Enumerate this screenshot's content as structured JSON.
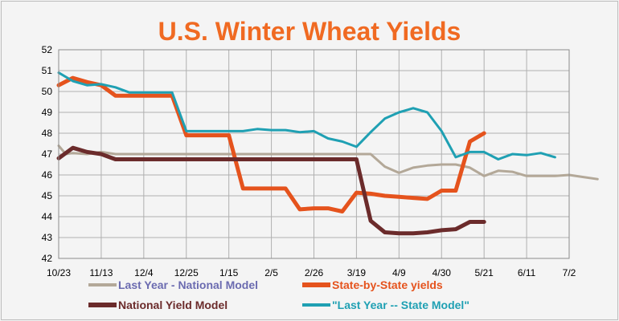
{
  "chart_data": {
    "type": "line",
    "title": "U.S. Winter Wheat Yields",
    "xlabel": "",
    "ylabel": "",
    "ylim": [
      42,
      52
    ],
    "yticks": [
      42,
      43,
      44,
      45,
      46,
      47,
      48,
      49,
      50,
      51,
      52
    ],
    "xticks": [
      "10/23",
      "11/13",
      "12/4",
      "12/25",
      "1/15",
      "2/5",
      "2/26",
      "3/19",
      "4/9",
      "4/30",
      "5/21",
      "6/11",
      "7/2"
    ],
    "x_unit": "weeks",
    "grid": true,
    "legend_position": "bottom",
    "colors": {
      "title": "#f06a22",
      "grid": "#b0b0b0",
      "axis": "#8c8c8c"
    },
    "series": [
      {
        "name": "Last Year - National Model",
        "color": "#b3a898",
        "legend_color": "#6b6bb0",
        "width": 3,
        "points": [
          [
            0,
            47.4
          ],
          [
            0.5,
            47.0
          ],
          [
            1,
            47.05
          ],
          [
            2,
            47.0
          ],
          [
            3,
            47.1
          ],
          [
            4,
            47.0
          ],
          [
            5,
            47.0
          ],
          [
            6,
            47.0
          ],
          [
            7,
            47.0
          ],
          [
            8,
            47.0
          ],
          [
            9,
            47.0
          ],
          [
            10,
            47.0
          ],
          [
            11,
            47.0
          ],
          [
            12,
            47.0
          ],
          [
            13,
            47.0
          ],
          [
            14,
            47.0
          ],
          [
            15,
            47.0
          ],
          [
            16,
            47.0
          ],
          [
            17,
            47.0
          ],
          [
            18,
            47.0
          ],
          [
            19,
            47.0
          ],
          [
            20,
            47.0
          ],
          [
            21,
            47.0
          ],
          [
            22,
            47.0
          ],
          [
            23,
            46.4
          ],
          [
            24,
            46.1
          ],
          [
            25,
            46.35
          ],
          [
            26,
            46.45
          ],
          [
            27,
            46.5
          ],
          [
            28,
            46.5
          ],
          [
            29,
            46.35
          ],
          [
            30,
            45.95
          ],
          [
            31,
            46.2
          ],
          [
            32,
            46.15
          ],
          [
            33,
            45.95
          ],
          [
            34,
            45.95
          ],
          [
            35,
            45.95
          ],
          [
            36,
            46.0
          ],
          [
            37,
            45.9
          ],
          [
            38,
            45.8
          ]
        ]
      },
      {
        "name": "State-by-State yields",
        "color": "#e5531d",
        "legend_color": "#e5531d",
        "width": 5,
        "points": [
          [
            0,
            50.3
          ],
          [
            1,
            50.65
          ],
          [
            2,
            50.45
          ],
          [
            3,
            50.3
          ],
          [
            4,
            49.8
          ],
          [
            5,
            49.8
          ],
          [
            6,
            49.8
          ],
          [
            7,
            49.8
          ],
          [
            8,
            49.8
          ],
          [
            9,
            47.9
          ],
          [
            10,
            47.9
          ],
          [
            11,
            47.9
          ],
          [
            12,
            47.9
          ],
          [
            13,
            45.35
          ],
          [
            14,
            45.35
          ],
          [
            15,
            45.35
          ],
          [
            16,
            45.35
          ],
          [
            17,
            44.35
          ],
          [
            18,
            44.4
          ],
          [
            19,
            44.4
          ],
          [
            20,
            44.25
          ],
          [
            21,
            45.15
          ],
          [
            22,
            45.1
          ],
          [
            23,
            45.0
          ],
          [
            24,
            44.95
          ],
          [
            25,
            44.9
          ],
          [
            26,
            44.85
          ],
          [
            27,
            45.25
          ],
          [
            28,
            45.25
          ],
          [
            29,
            47.6
          ],
          [
            30,
            48.0
          ]
        ]
      },
      {
        "name": "National Yield Model",
        "color": "#6b2b2b",
        "legend_color": "#6b2b2b",
        "width": 5,
        "points": [
          [
            0,
            46.8
          ],
          [
            1,
            47.3
          ],
          [
            2,
            47.1
          ],
          [
            3,
            47.0
          ],
          [
            4,
            46.75
          ],
          [
            5,
            46.75
          ],
          [
            6,
            46.75
          ],
          [
            7,
            46.75
          ],
          [
            8,
            46.75
          ],
          [
            9,
            46.75
          ],
          [
            10,
            46.75
          ],
          [
            11,
            46.75
          ],
          [
            12,
            46.75
          ],
          [
            13,
            46.75
          ],
          [
            14,
            46.75
          ],
          [
            15,
            46.75
          ],
          [
            16,
            46.75
          ],
          [
            17,
            46.75
          ],
          [
            18,
            46.75
          ],
          [
            19,
            46.75
          ],
          [
            20,
            46.75
          ],
          [
            21,
            46.75
          ],
          [
            22,
            43.8
          ],
          [
            23,
            43.25
          ],
          [
            24,
            43.2
          ],
          [
            25,
            43.2
          ],
          [
            26,
            43.25
          ],
          [
            27,
            43.35
          ],
          [
            28,
            43.4
          ],
          [
            29,
            43.75
          ],
          [
            30,
            43.75
          ]
        ]
      },
      {
        "name": "\"Last Year -- State Model\"",
        "color": "#1fa0b3",
        "legend_color": "#1fa0b3",
        "width": 3,
        "points": [
          [
            0,
            50.9
          ],
          [
            1,
            50.5
          ],
          [
            2,
            50.3
          ],
          [
            3,
            50.35
          ],
          [
            4,
            50.2
          ],
          [
            5,
            49.95
          ],
          [
            6,
            49.95
          ],
          [
            7,
            49.95
          ],
          [
            8,
            49.95
          ],
          [
            9,
            48.1
          ],
          [
            10,
            48.1
          ],
          [
            11,
            48.1
          ],
          [
            12,
            48.1
          ],
          [
            13,
            48.1
          ],
          [
            14,
            48.2
          ],
          [
            15,
            48.15
          ],
          [
            16,
            48.15
          ],
          [
            17,
            48.05
          ],
          [
            18,
            48.1
          ],
          [
            19,
            47.75
          ],
          [
            20,
            47.6
          ],
          [
            21,
            47.35
          ],
          [
            22,
            48.05
          ],
          [
            23,
            48.7
          ],
          [
            24,
            49.0
          ],
          [
            25,
            49.2
          ],
          [
            26,
            49.0
          ],
          [
            27,
            48.1
          ],
          [
            28,
            46.85
          ],
          [
            29,
            47.1
          ],
          [
            30,
            47.1
          ],
          [
            31,
            46.75
          ],
          [
            32,
            47.0
          ],
          [
            33,
            46.95
          ],
          [
            34,
            47.05
          ],
          [
            35,
            46.85
          ]
        ]
      }
    ]
  }
}
